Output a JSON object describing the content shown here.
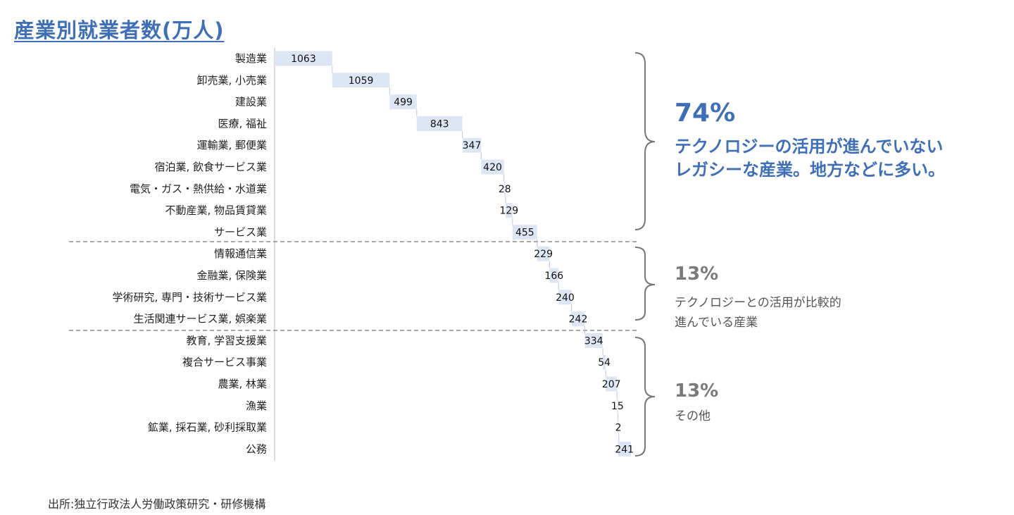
{
  "title": "産業別就業者数(万人)",
  "source": "出所:独立行政法人労働政策研究・研修機構",
  "colors": {
    "bar": "#dde7f4",
    "accent": "#3f6fb6",
    "muted": "#7a7a7a"
  },
  "chart_data": {
    "type": "bar",
    "orientation": "horizontal",
    "variant": "waterfall",
    "title": "産業別就業者数(万人)",
    "xlabel": "",
    "ylabel": "",
    "grid": false,
    "categories": [
      "製造業",
      "卸売業, 小売業",
      "建設業",
      "医療, 福祉",
      "運輸業, 郵便業",
      "宿泊業, 飲食サービス業",
      "電気・ガス・熱供給・水道業",
      "不動産業, 物品賃貸業",
      "サービス業",
      "情報通信業",
      "金融業, 保険業",
      "学術研究, 専門・技術サービス業",
      "生活関連サービス業, 娯楽業",
      "教育, 学習支援業",
      "複合サービス事業",
      "農業, 林業",
      "漁業",
      "鉱業, 採石業, 砂利採取業",
      "公務"
    ],
    "values": [
      1063,
      1059,
      499,
      843,
      347,
      420,
      28,
      129,
      455,
      229,
      166,
      240,
      242,
      334,
      54,
      207,
      15,
      2,
      241
    ]
  },
  "groups": [
    {
      "percent": "74%",
      "lines": [
        "テクノロジーの活用が進んでいない",
        "レガシーな産業。地方などに多い。"
      ]
    },
    {
      "percent": "13%",
      "lines": [
        "テクノロジーとの活用が比較的",
        "進んでいる産業"
      ]
    },
    {
      "percent": "13%",
      "lines": [
        "その他"
      ]
    }
  ]
}
